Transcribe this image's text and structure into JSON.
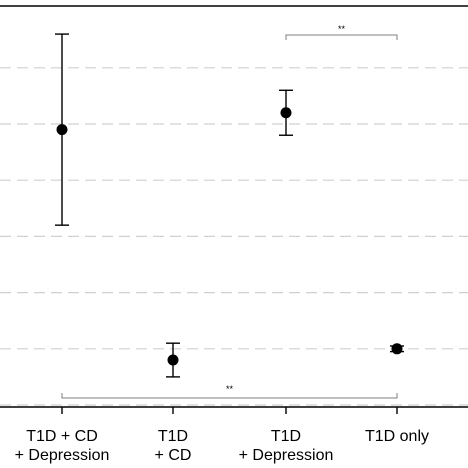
{
  "chart_data": {
    "type": "scatter",
    "title": "",
    "xlabel": "",
    "ylabel": "",
    "categories": [
      {
        "line1": "T1D + CD",
        "line2": "+ Depression"
      },
      {
        "line1": "T1D",
        "line2": "+ CD"
      },
      {
        "line1": "T1D",
        "line2": "+ Depression"
      },
      {
        "line1": "T1D only",
        "line2": ""
      }
    ],
    "series": [
      {
        "values": [
          0.49,
          0.08,
          0.52,
          0.1
        ],
        "ci_low": [
          0.32,
          0.05,
          0.48,
          0.095
        ],
        "ci_high": [
          0.66,
          0.11,
          0.56,
          0.105
        ]
      }
    ],
    "ylim": [
      0.0,
      0.7
    ],
    "gridlines": [
      0.0,
      0.1,
      0.2,
      0.3,
      0.4,
      0.5,
      0.6
    ],
    "grid": true,
    "grid_style": "dashed",
    "significance": [
      {
        "from": 2,
        "to": 3,
        "label": "**",
        "position": "top"
      },
      {
        "from": 0,
        "to": 3,
        "label": "**",
        "position": "bottom"
      }
    ],
    "colors": {
      "marker": "#000000",
      "grid": "#d0d0d0",
      "axis": "#000000",
      "bracket": "#7f7f7f"
    }
  }
}
